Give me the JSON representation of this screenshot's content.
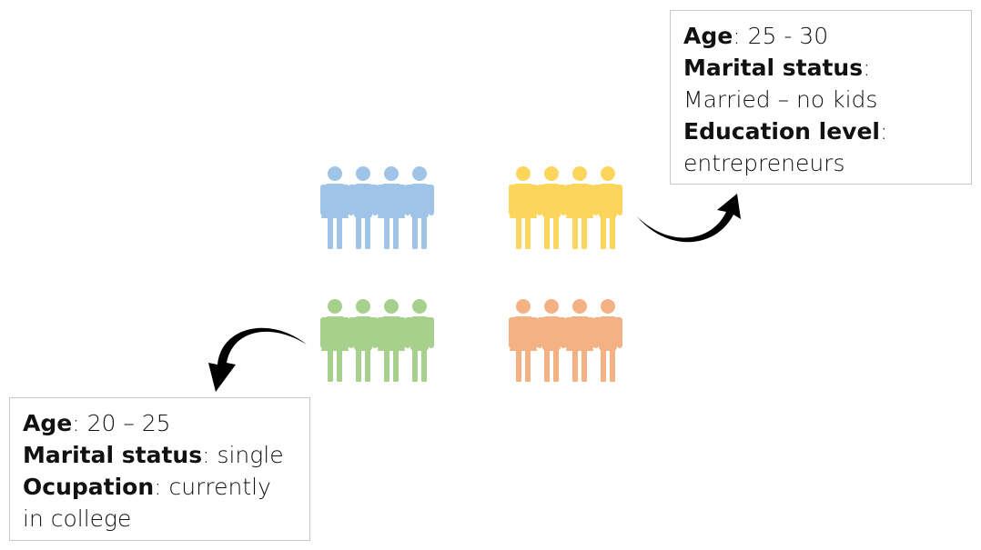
{
  "colors": {
    "group_blue": "#9fc4e7",
    "group_yellow": "#fcd65c",
    "group_green": "#a8d08d",
    "group_orange": "#f4b183",
    "arrow": "#000000"
  },
  "groups": [
    {
      "id": "blue",
      "icon": "people-group-icon",
      "color": "#9fc4e7"
    },
    {
      "id": "yellow",
      "icon": "people-group-icon",
      "color": "#fcd65c"
    },
    {
      "id": "green",
      "icon": "people-group-icon",
      "color": "#a8d08d"
    },
    {
      "id": "orange",
      "icon": "people-group-icon",
      "color": "#f4b183"
    }
  ],
  "top_box": {
    "age_label": "Age",
    "age_value": ": 25 - 30",
    "marital_label": "Marital status",
    "marital_colon": ":",
    "marital_value": "Married – no kids",
    "education_label": "Education level",
    "education_colon": ":",
    "education_value": "entrepreneurs"
  },
  "bottom_box": {
    "age_label": "Age",
    "age_value": ": 20 – 25",
    "marital_label": "Marital status",
    "marital_value": ": single",
    "occupation_label": "Ocupation",
    "occupation_value": ": currently",
    "occupation_value_cont": "in college"
  }
}
